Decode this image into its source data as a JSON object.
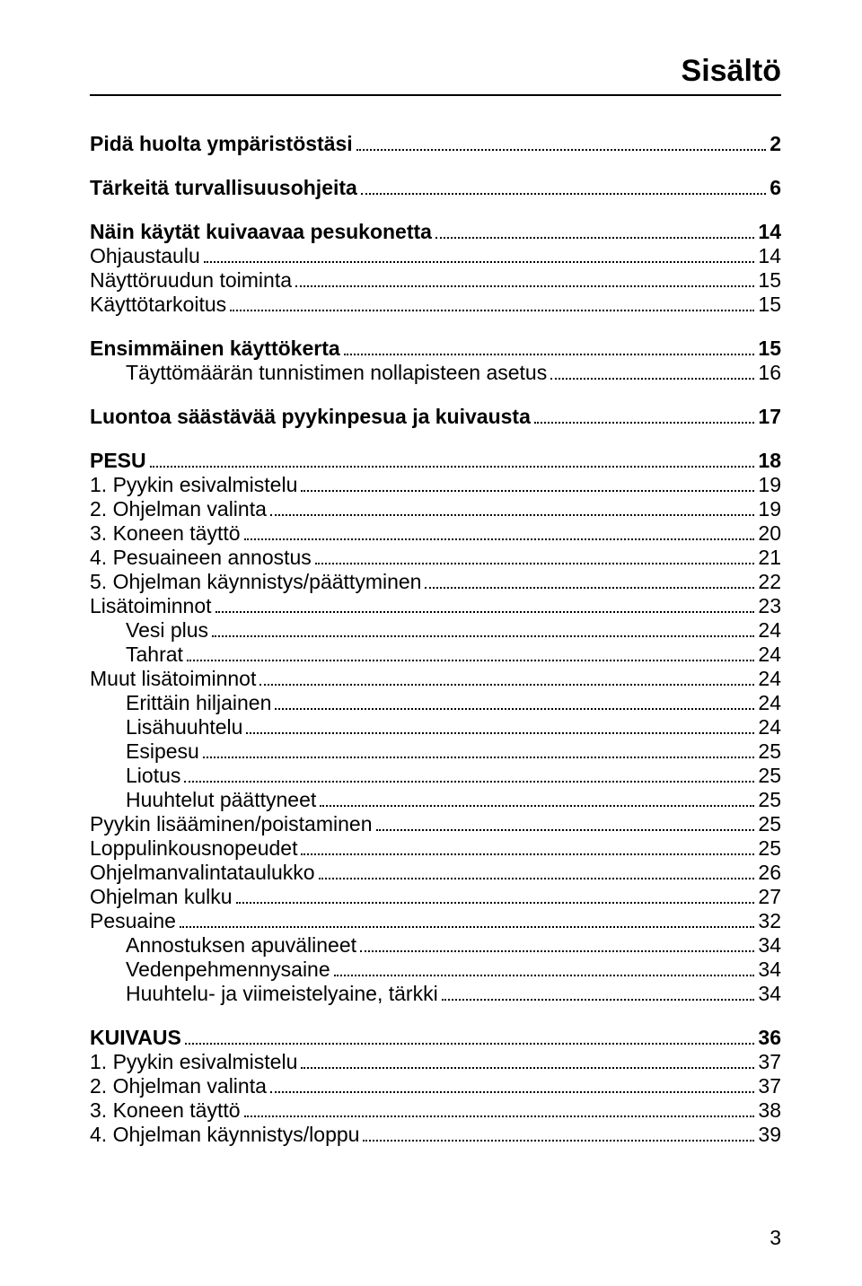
{
  "title": "Sisältö",
  "title_fontsize": 34,
  "body_fontsize": 23,
  "line_height": 27,
  "text_color": "#000000",
  "background": "#ffffff",
  "page_number": "3",
  "page_number_fontsize": 23,
  "toc": [
    {
      "label": "Pidä huolta ympäristöstäsi",
      "page": "2",
      "level": 0,
      "bold": true,
      "gap": true
    },
    {
      "label": "Tärkeitä turvallisuusohjeita",
      "page": "6",
      "level": 0,
      "bold": true,
      "gap": true
    },
    {
      "label": "Näin käytät kuivaavaa pesukonetta",
      "page": "14",
      "level": 0,
      "bold": true,
      "gap": true
    },
    {
      "label": "Ohjaustaulu",
      "page": "14",
      "level": 0,
      "bold": false,
      "gap": false
    },
    {
      "label": "Näyttöruudun toiminta",
      "page": "15",
      "level": 0,
      "bold": false,
      "gap": false
    },
    {
      "label": "Käyttötarkoitus",
      "page": "15",
      "level": 0,
      "bold": false,
      "gap": false
    },
    {
      "label": "Ensimmäinen käyttökerta",
      "page": "15",
      "level": 0,
      "bold": true,
      "gap": true
    },
    {
      "label": "Täyttömäärän tunnistimen nollapisteen asetus",
      "page": "16",
      "level": 1,
      "bold": false,
      "gap": false
    },
    {
      "label": "Luontoa säästävää pyykinpesua ja kuivausta",
      "page": "17",
      "level": 0,
      "bold": true,
      "gap": true
    },
    {
      "label": "PESU",
      "page": "18",
      "level": 0,
      "bold": true,
      "gap": true
    },
    {
      "label": "1. Pyykin esivalmistelu",
      "page": "19",
      "level": 0,
      "bold": false,
      "gap": false
    },
    {
      "label": "2. Ohjelman valinta",
      "page": "19",
      "level": 0,
      "bold": false,
      "gap": false
    },
    {
      "label": "3. Koneen täyttö",
      "page": "20",
      "level": 0,
      "bold": false,
      "gap": false
    },
    {
      "label": "4. Pesuaineen annostus",
      "page": "21",
      "level": 0,
      "bold": false,
      "gap": false
    },
    {
      "label": "5. Ohjelman käynnistys/päättyminen",
      "page": "22",
      "level": 0,
      "bold": false,
      "gap": false
    },
    {
      "label": "Lisätoiminnot",
      "page": "23",
      "level": 0,
      "bold": false,
      "gap": false
    },
    {
      "label": "Vesi plus",
      "page": "24",
      "level": 1,
      "bold": false,
      "gap": false
    },
    {
      "label": "Tahrat",
      "page": "24",
      "level": 1,
      "bold": false,
      "gap": false
    },
    {
      "label": "Muut lisätoiminnot",
      "page": "24",
      "level": 0,
      "bold": false,
      "gap": false
    },
    {
      "label": "Erittäin hiljainen",
      "page": "24",
      "level": 1,
      "bold": false,
      "gap": false
    },
    {
      "label": "Lisähuuhtelu",
      "page": "24",
      "level": 1,
      "bold": false,
      "gap": false
    },
    {
      "label": "Esipesu",
      "page": "25",
      "level": 1,
      "bold": false,
      "gap": false
    },
    {
      "label": "Liotus",
      "page": "25",
      "level": 1,
      "bold": false,
      "gap": false
    },
    {
      "label": "Huuhtelut päättyneet",
      "page": "25",
      "level": 1,
      "bold": false,
      "gap": false
    },
    {
      "label": "Pyykin lisääminen/poistaminen",
      "page": "25",
      "level": 0,
      "bold": false,
      "gap": false
    },
    {
      "label": "Loppulinkousnopeudet",
      "page": "25",
      "level": 0,
      "bold": false,
      "gap": false
    },
    {
      "label": "Ohjelmanvalintataulukko",
      "page": "26",
      "level": 0,
      "bold": false,
      "gap": false
    },
    {
      "label": "Ohjelman kulku",
      "page": "27",
      "level": 0,
      "bold": false,
      "gap": false
    },
    {
      "label": "Pesuaine",
      "page": "32",
      "level": 0,
      "bold": false,
      "gap": false
    },
    {
      "label": "Annostuksen apuvälineet",
      "page": "34",
      "level": 1,
      "bold": false,
      "gap": false
    },
    {
      "label": "Vedenpehmennysaine",
      "page": "34",
      "level": 1,
      "bold": false,
      "gap": false
    },
    {
      "label": "Huuhtelu- ja viimeistelyaine, tärkki",
      "page": "34",
      "level": 1,
      "bold": false,
      "gap": false
    },
    {
      "label": "KUIVAUS",
      "page": "36",
      "level": 0,
      "bold": true,
      "gap": true
    },
    {
      "label": "1. Pyykin esivalmistelu",
      "page": "37",
      "level": 0,
      "bold": false,
      "gap": false
    },
    {
      "label": "2. Ohjelman valinta",
      "page": "37",
      "level": 0,
      "bold": false,
      "gap": false
    },
    {
      "label": "3. Koneen täyttö",
      "page": "38",
      "level": 0,
      "bold": false,
      "gap": false
    },
    {
      "label": "4. Ohjelman käynnistys/loppu",
      "page": "39",
      "level": 0,
      "bold": false,
      "gap": false
    }
  ]
}
